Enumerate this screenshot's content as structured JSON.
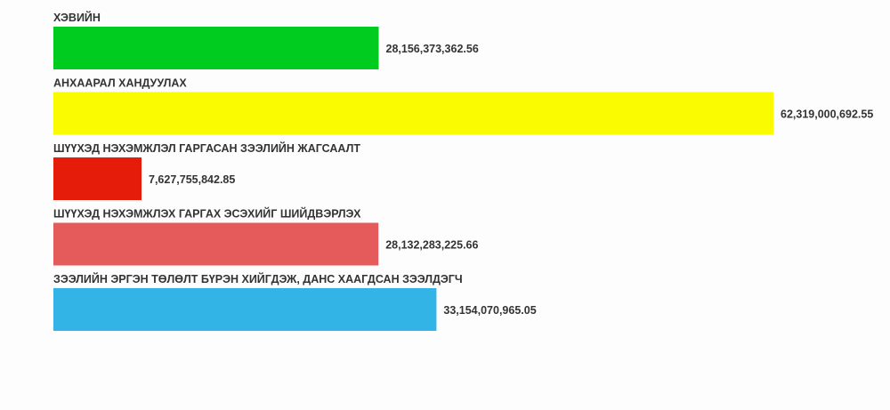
{
  "chart_data": {
    "type": "bar",
    "orientation": "horizontal",
    "categories": [
      "ХЭВИЙН",
      "АНХААРАЛ ХАНДУУЛАХ",
      "ШҮҮХЭД НЭХЭМЖЛЭЛ ГАРГАСАН ЗЭЭЛИЙН ЖАГСААЛТ",
      "ШҮҮХЭД НЭХЭМЖЛЭХ ГАРГАХ ЭСЭХИЙГ ШИЙДВЭРЛЭХ",
      "ЗЭЭЛИЙН ЭРГЭН ТӨЛӨЛТ БҮРЭН ХИЙГДЭЖ, ДАНС ХААГДСАН ЗЭЭЛДЭГЧ"
    ],
    "values": [
      28156373362.56,
      62319000692.55,
      7627755842.85,
      28132283225.66,
      33154070965.05
    ],
    "value_labels": [
      "28,156,373,362.56",
      "62,319,000,692.55",
      "7,627,755,842.85",
      "28,132,283,225.66",
      "33,154,070,965.05"
    ],
    "colors": [
      "#00cc1f",
      "#fafa00",
      "#e61c0a",
      "#e55b5b",
      "#32b5e6"
    ],
    "title": "",
    "xlabel": "",
    "ylabel": "",
    "grid": false,
    "legend": false
  }
}
